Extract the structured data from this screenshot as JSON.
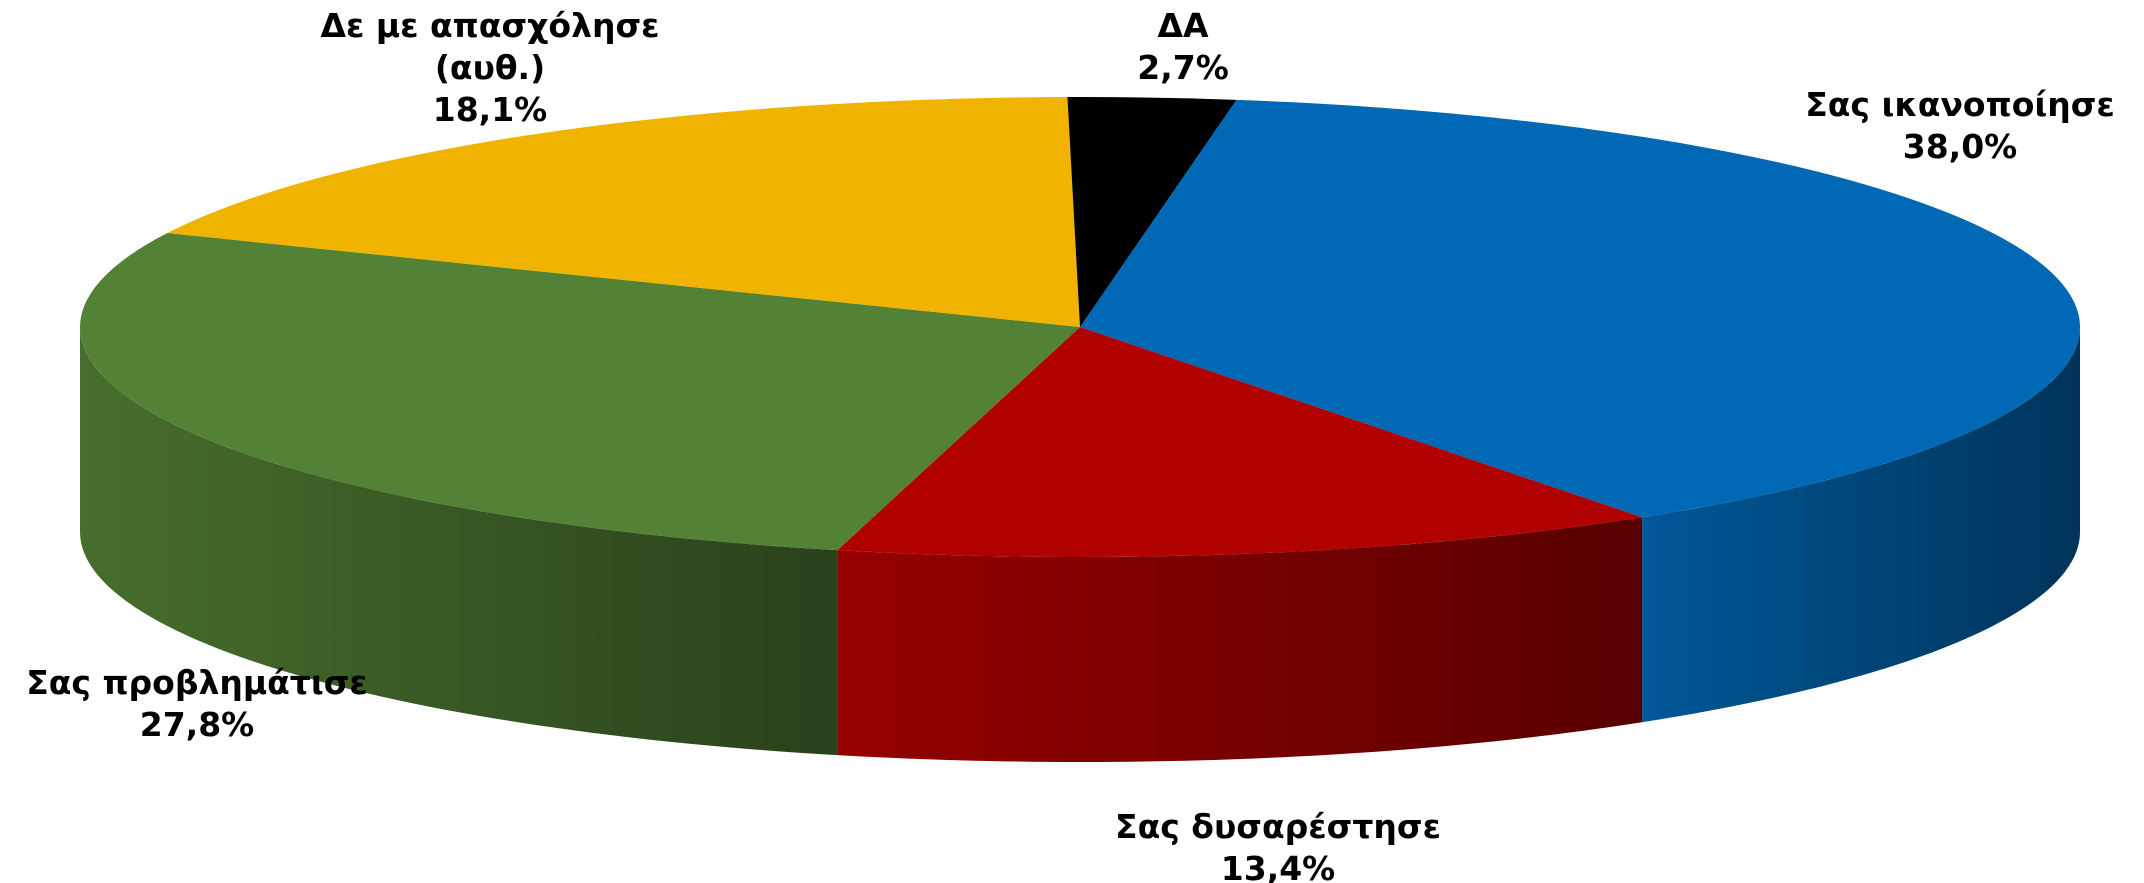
{
  "chart_data": {
    "type": "pie3d",
    "categories": [
      "Σας ικανοποίησε",
      "Σας δυσαρέστησε",
      "Σας προβλημάτισε",
      "Δε με απασχόλησε (αυθ.)",
      "ΔΑ"
    ],
    "values": [
      38.0,
      13.4,
      27.8,
      18.1,
      2.7
    ],
    "value_labels": [
      "38,0%",
      "13,4%",
      "27,8%",
      "18,1%",
      "2,7%"
    ],
    "colors": [
      "#0068b4",
      "#b00000",
      "#538135",
      "#f0b400",
      "#000000"
    ]
  }
}
